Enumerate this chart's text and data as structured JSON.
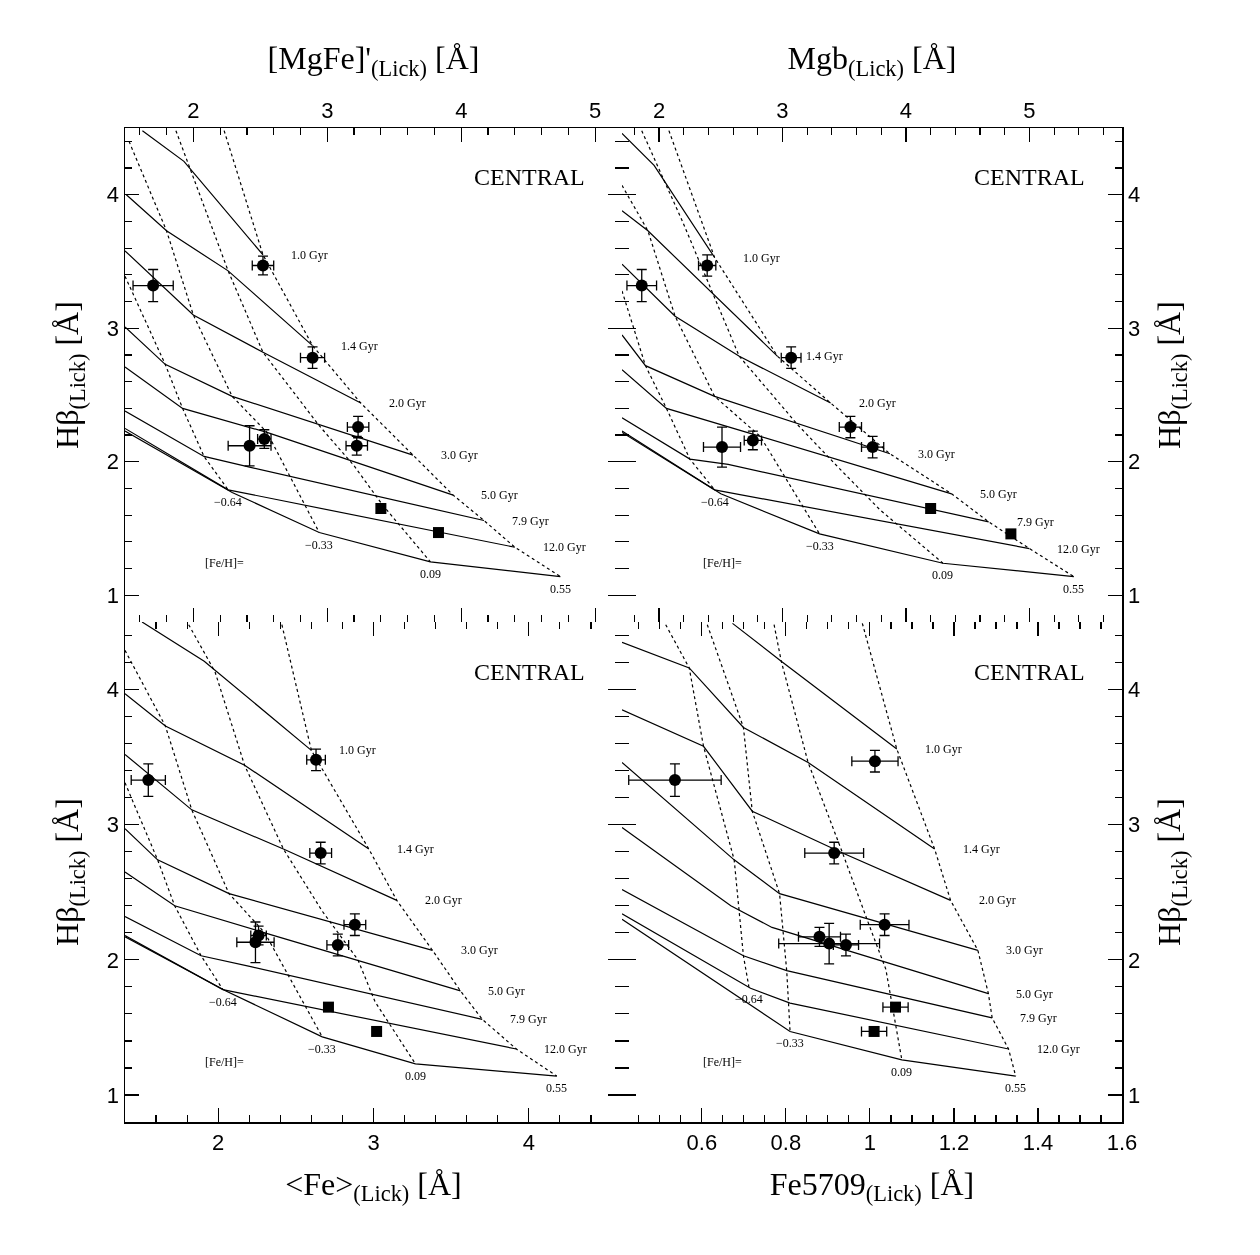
{
  "chart_data": [
    {
      "type": "scatter",
      "xlabel": "[MgFe]'$_{(Lick)}$ [Å]",
      "ylabel": "Hβ$_{(Lick)}$ [Å]",
      "xlim": [
        1.49,
        5.2
      ],
      "xticks": [
        2,
        3,
        4,
        5
      ],
      "ylim": [
        0.8,
        4.5
      ],
      "yticks": [
        1,
        2,
        3,
        4
      ],
      "annotations": [
        "CENTRAL",
        "[Fe/H]=",
        {
          "text": "1.0 Gyr",
          "x": 2.52,
          "y": 3.55
        },
        {
          "text": "1.4 Gyr",
          "x": 2.89,
          "y": 2.87
        },
        {
          "text": "2.0 Gyr",
          "x": 3.25,
          "y": 2.44
        },
        {
          "text": "3.0 Gyr",
          "x": 3.64,
          "y": 2.05
        },
        {
          "text": "5.0 Gyr",
          "x": 3.94,
          "y": 1.75
        },
        {
          "text": "7.9 Gyr",
          "x": 4.17,
          "y": 1.56
        },
        {
          "text": "12.0 Gyr",
          "x": 4.4,
          "y": 1.36
        },
        {
          "text": "−0.64",
          "x": 2.26,
          "y": 1.79
        },
        {
          "text": "−0.33",
          "x": 2.94,
          "y": 1.47
        },
        {
          "text": "0.09",
          "x": 3.77,
          "y": 1.25
        },
        {
          "text": "0.55",
          "x": 4.74,
          "y": 1.14
        }
      ],
      "series": [
        {
          "type": "line",
          "color": "#000000",
          "line_style": "solid",
          "marker": "none",
          "x": [
            1.62,
            1.93,
            2.52
          ],
          "values": [
            4.48,
            4.25,
            3.55
          ]
        },
        {
          "type": "line",
          "color": "#000000",
          "line_style": "solid",
          "marker": "none",
          "x": [
            1.5,
            1.8,
            2.26,
            2.89
          ],
          "values": [
            4.0,
            3.73,
            3.43,
            2.87
          ]
        },
        {
          "type": "line",
          "color": "#000000",
          "line_style": "solid",
          "marker": "none",
          "x": [
            1.49,
            2.0,
            2.52,
            3.25
          ],
          "values": [
            3.58,
            3.1,
            2.82,
            2.44
          ]
        },
        {
          "type": "line",
          "color": "#000000",
          "line_style": "solid",
          "marker": "none",
          "x": [
            1.49,
            1.79,
            2.29,
            3.64
          ],
          "values": [
            3.01,
            2.73,
            2.49,
            2.05
          ]
        },
        {
          "type": "line",
          "color": "#000000",
          "line_style": "solid",
          "marker": "none",
          "x": [
            1.49,
            1.92,
            2.55,
            3.94
          ],
          "values": [
            2.71,
            2.4,
            2.22,
            1.75
          ]
        },
        {
          "type": "line",
          "color": "#000000",
          "line_style": "solid",
          "marker": "none",
          "x": [
            1.49,
            2.08,
            2.42,
            4.17
          ],
          "values": [
            2.38,
            2.04,
            1.96,
            1.56
          ]
        },
        {
          "type": "line",
          "color": "#000000",
          "line_style": "solid",
          "marker": "none",
          "x": [
            1.49,
            2.26,
            4.4
          ],
          "values": [
            2.25,
            1.79,
            1.36
          ]
        },
        {
          "type": "line",
          "color": "#000000",
          "line_style": "solid",
          "marker": "none",
          "x": [
            1.49,
            2.29,
            2.94,
            3.77,
            4.74
          ],
          "values": [
            2.23,
            1.77,
            1.47,
            1.25,
            1.14
          ]
        },
        {
          "type": "line",
          "color": "#000000",
          "line_style": "dotted",
          "marker": "none",
          "x": [
            2.23,
            2.52,
            2.89,
            3.25,
            3.64,
            3.94,
            4.17,
            4.4,
            4.74
          ],
          "values": [
            4.48,
            3.55,
            2.87,
            2.44,
            2.05,
            1.75,
            1.56,
            1.36,
            1.14
          ]
        },
        {
          "type": "line",
          "color": "#000000",
          "line_style": "dotted",
          "marker": "none",
          "x": [
            1.87,
            2.26,
            2.52,
            2.94,
            3.2,
            3.41,
            3.77
          ],
          "values": [
            4.48,
            3.43,
            2.82,
            2.27,
            1.97,
            1.68,
            1.25
          ]
        },
        {
          "type": "line",
          "color": "#000000",
          "line_style": "dotted",
          "marker": "none",
          "x": [
            1.52,
            1.8,
            2.0,
            2.29,
            2.55,
            2.94
          ],
          "values": [
            4.4,
            3.73,
            3.1,
            2.49,
            2.22,
            1.47
          ]
        },
        {
          "type": "line",
          "color": "#000000",
          "line_style": "dotted",
          "marker": "none",
          "x": [
            1.49,
            1.79,
            1.92,
            2.08,
            2.26
          ],
          "values": [
            3.39,
            2.73,
            2.4,
            2.04,
            1.79
          ]
        },
        {
          "color": "#000000",
          "marker": "circle",
          "x": [
            1.7,
            2.52,
            2.89,
            3.23,
            3.22,
            2.42,
            2.53
          ],
          "values": [
            3.32,
            3.47,
            2.78,
            2.26,
            2.12,
            2.12,
            2.17
          ],
          "xerrors": [
            0.15,
            0.08,
            0.09,
            0.08,
            0.08,
            0.16,
            0.05
          ],
          "errors": [
            0.12,
            0.07,
            0.08,
            0.08,
            0.07,
            0.15,
            0.07
          ]
        },
        {
          "color": "#000000",
          "marker": "square",
          "x": [
            3.4,
            3.83
          ],
          "values": [
            1.65,
            1.47
          ]
        }
      ]
    },
    {
      "type": "scatter",
      "xlabel": "Mgb$_{(Lick)}$ [Å]",
      "ylabel": "Hβ$_{(Lick)}$ [Å]",
      "xlim": [
        1.7,
        5.75
      ],
      "xticks": [
        2,
        3,
        4,
        5
      ],
      "ylim": [
        0.8,
        4.5
      ],
      "yticks": [
        1,
        2,
        3,
        4
      ],
      "annotations": [
        "CENTRAL",
        "[Fe/H]=",
        {
          "text": "1.0 Gyr",
          "x": 2.45,
          "y": 3.53
        },
        {
          "text": "1.4 Gyr",
          "x": 2.96,
          "y": 2.79
        },
        {
          "text": "2.0 Gyr",
          "x": 3.39,
          "y": 2.44
        },
        {
          "text": "3.0 Gyr",
          "x": 3.87,
          "y": 2.06
        },
        {
          "text": "5.0 Gyr",
          "x": 4.37,
          "y": 1.76
        },
        {
          "text": "7.9 Gyr",
          "x": 4.67,
          "y": 1.55
        },
        {
          "text": "12.0 Gyr",
          "x": 5.0,
          "y": 1.35
        },
        {
          "text": "−0.64",
          "x": 2.45,
          "y": 1.79
        },
        {
          "text": "−0.33",
          "x": 3.3,
          "y": 1.46
        },
        {
          "text": "0.09",
          "x": 4.3,
          "y": 1.24
        },
        {
          "text": "0.55",
          "x": 5.36,
          "y": 1.14
        }
      ],
      "series": [
        {
          "type": "line",
          "color": "#000000",
          "line_style": "solid",
          "marker": "none",
          "x": [
            1.7,
            1.96,
            2.45
          ],
          "values": [
            4.46,
            4.22,
            3.53
          ]
        },
        {
          "type": "line",
          "color": "#000000",
          "line_style": "solid",
          "marker": "none",
          "x": [
            1.7,
            1.91,
            2.96
          ],
          "values": [
            3.88,
            3.73,
            2.79
          ]
        },
        {
          "type": "line",
          "color": "#000000",
          "line_style": "solid",
          "marker": "none",
          "x": [
            1.7,
            2.13,
            2.65,
            3.39
          ],
          "values": [
            3.48,
            3.09,
            2.79,
            2.44
          ]
        },
        {
          "type": "line",
          "color": "#000000",
          "line_style": "solid",
          "marker": "none",
          "x": [
            1.7,
            1.89,
            2.45,
            3.87
          ],
          "values": [
            2.95,
            2.72,
            2.49,
            2.06
          ]
        },
        {
          "type": "line",
          "color": "#000000",
          "line_style": "solid",
          "marker": "none",
          "x": [
            1.7,
            2.06,
            2.82,
            4.37
          ],
          "values": [
            2.69,
            2.4,
            2.19,
            1.76
          ]
        },
        {
          "type": "line",
          "color": "#000000",
          "line_style": "solid",
          "marker": "none",
          "x": [
            1.7,
            2.25,
            2.56,
            4.67
          ],
          "values": [
            2.33,
            2.02,
            1.98,
            1.55
          ]
        },
        {
          "type": "line",
          "color": "#000000",
          "line_style": "solid",
          "marker": "none",
          "x": [
            1.7,
            2.45,
            5.0
          ],
          "values": [
            2.22,
            1.79,
            1.35
          ]
        },
        {
          "type": "line",
          "color": "#000000",
          "line_style": "solid",
          "marker": "none",
          "x": [
            1.7,
            2.5,
            3.3,
            4.3,
            5.36
          ],
          "values": [
            2.23,
            1.76,
            1.46,
            1.24,
            1.14
          ]
        },
        {
          "type": "line",
          "color": "#000000",
          "line_style": "dotted",
          "marker": "none",
          "x": [
            2.08,
            2.45,
            2.96,
            3.39,
            3.87,
            4.37,
            4.67,
            5.0,
            5.36
          ],
          "values": [
            4.48,
            3.53,
            2.79,
            2.44,
            2.06,
            1.76,
            1.55,
            1.35,
            1.14
          ]
        },
        {
          "type": "line",
          "color": "#000000",
          "line_style": "dotted",
          "marker": "none",
          "x": [
            1.86,
            2.19,
            2.65,
            3.13,
            3.45,
            3.79,
            4.3
          ],
          "values": [
            4.48,
            3.8,
            2.79,
            2.27,
            1.96,
            1.64,
            1.24
          ]
        },
        {
          "type": "line",
          "color": "#000000",
          "line_style": "dotted",
          "marker": "none",
          "x": [
            1.7,
            1.91,
            2.13,
            2.45,
            2.82,
            3.3
          ],
          "values": [
            4.07,
            3.73,
            3.09,
            2.49,
            2.19,
            1.46
          ]
        },
        {
          "type": "line",
          "color": "#000000",
          "line_style": "dotted",
          "marker": "none",
          "x": [
            1.7,
            1.89,
            2.06,
            2.25,
            2.45
          ],
          "values": [
            3.28,
            2.72,
            2.4,
            2.02,
            1.79
          ]
        },
        {
          "color": "#000000",
          "marker": "circle",
          "x": [
            1.86,
            2.39,
            3.07,
            3.55,
            3.73,
            2.51,
            2.76
          ],
          "values": [
            3.32,
            3.47,
            2.78,
            2.26,
            2.11,
            2.11,
            2.16
          ],
          "xerrors": [
            0.12,
            0.07,
            0.08,
            0.09,
            0.09,
            0.15,
            0.07
          ],
          "errors": [
            0.12,
            0.08,
            0.08,
            0.08,
            0.08,
            0.15,
            0.07
          ]
        },
        {
          "color": "#000000",
          "marker": "square",
          "x": [
            4.2,
            4.85
          ],
          "values": [
            1.65,
            1.46
          ]
        }
      ]
    },
    {
      "type": "scatter",
      "xlabel": "<Fe>$_{(Lick)}$ [Å]",
      "ylabel": "Hβ$_{(Lick)}$ [Å]",
      "xlim": [
        1.4,
        4.6
      ],
      "xticks": [
        2,
        3,
        4
      ],
      "ylim": [
        0.8,
        4.5
      ],
      "yticks": [
        1,
        2,
        3,
        4
      ],
      "annotations": [
        "CENTRAL",
        "[Fe/H]=",
        {
          "text": "1.0 Gyr",
          "x": 2.6,
          "y": 3.55
        },
        {
          "text": "1.4 Gyr",
          "x": 2.97,
          "y": 2.82
        },
        {
          "text": "2.0 Gyr",
          "x": 3.15,
          "y": 2.44
        },
        {
          "text": "3.0 Gyr",
          "x": 3.38,
          "y": 2.07
        },
        {
          "text": "5.0 Gyr",
          "x": 3.56,
          "y": 1.77
        },
        {
          "text": "7.9 Gyr",
          "x": 3.7,
          "y": 1.56
        },
        {
          "text": "12.0 Gyr",
          "x": 3.92,
          "y": 1.34
        },
        {
          "text": "−0.64",
          "x": 2.03,
          "y": 1.78
        },
        {
          "text": "−0.33",
          "x": 2.67,
          "y": 1.43
        },
        {
          "text": "0.09",
          "x": 3.27,
          "y": 1.23
        },
        {
          "text": "0.55",
          "x": 4.18,
          "y": 1.14
        }
      ],
      "series": [
        {
          "type": "line",
          "color": "#000000",
          "line_style": "solid",
          "marker": "none",
          "x": [
            1.51,
            1.91,
            2.6
          ],
          "values": [
            4.5,
            4.21,
            3.55
          ]
        },
        {
          "type": "line",
          "color": "#000000",
          "line_style": "solid",
          "marker": "none",
          "x": [
            1.4,
            1.66,
            2.17,
            2.97
          ],
          "values": [
            3.97,
            3.73,
            3.44,
            2.82
          ]
        },
        {
          "type": "line",
          "color": "#000000",
          "line_style": "solid",
          "marker": "none",
          "x": [
            1.4,
            1.83,
            2.42,
            3.15
          ],
          "values": [
            3.52,
            3.11,
            2.82,
            2.44
          ]
        },
        {
          "type": "line",
          "color": "#000000",
          "line_style": "solid",
          "marker": "none",
          "x": [
            1.4,
            1.61,
            2.07,
            3.38
          ],
          "values": [
            2.97,
            2.74,
            2.49,
            2.07
          ]
        },
        {
          "type": "line",
          "color": "#000000",
          "line_style": "solid",
          "marker": "none",
          "x": [
            1.4,
            1.72,
            2.3,
            3.56
          ],
          "values": [
            2.65,
            2.4,
            2.2,
            1.77
          ]
        },
        {
          "type": "line",
          "color": "#000000",
          "line_style": "solid",
          "marker": "none",
          "x": [
            1.4,
            1.89,
            2.21,
            3.7
          ],
          "values": [
            2.32,
            2.03,
            1.95,
            1.56
          ]
        },
        {
          "type": "line",
          "color": "#000000",
          "line_style": "solid",
          "marker": "none",
          "x": [
            1.4,
            2.03,
            3.92
          ],
          "values": [
            2.18,
            1.78,
            1.34
          ]
        },
        {
          "type": "line",
          "color": "#000000",
          "line_style": "solid",
          "marker": "none",
          "x": [
            1.4,
            2.05,
            2.67,
            3.27,
            4.18
          ],
          "values": [
            2.17,
            1.77,
            1.43,
            1.23,
            1.14
          ]
        },
        {
          "type": "line",
          "color": "#000000",
          "line_style": "dotted",
          "marker": "none",
          "x": [
            2.41,
            2.6,
            2.97,
            3.15,
            3.38,
            3.56,
            3.7,
            3.92,
            4.18
          ],
          "values": [
            4.48,
            3.55,
            2.82,
            2.44,
            2.07,
            1.77,
            1.56,
            1.34,
            1.14
          ]
        },
        {
          "type": "line",
          "color": "#000000",
          "line_style": "dotted",
          "marker": "none",
          "x": [
            1.81,
            1.98,
            2.17,
            2.42,
            2.67,
            2.9,
            3.01,
            3.27
          ],
          "values": [
            4.48,
            4.13,
            3.44,
            2.82,
            2.36,
            2.0,
            1.69,
            1.23
          ]
        },
        {
          "type": "line",
          "color": "#000000",
          "line_style": "dotted",
          "marker": "none",
          "x": [
            1.4,
            1.66,
            1.83,
            2.07,
            2.3,
            2.67
          ],
          "values": [
            4.29,
            3.73,
            3.11,
            2.49,
            2.2,
            1.43
          ]
        },
        {
          "type": "line",
          "color": "#000000",
          "line_style": "dotted",
          "marker": "none",
          "x": [
            1.4,
            1.61,
            1.72,
            1.89,
            2.03
          ],
          "values": [
            3.31,
            2.74,
            2.4,
            2.03,
            1.78
          ]
        },
        {
          "color": "#000000",
          "marker": "circle",
          "x": [
            1.55,
            2.63,
            2.66,
            2.88,
            2.77,
            2.24,
            2.26
          ],
          "values": [
            3.33,
            3.48,
            2.79,
            2.26,
            2.11,
            2.13,
            2.18
          ],
          "xerrors": [
            0.11,
            0.06,
            0.07,
            0.07,
            0.07,
            0.12,
            0.05
          ],
          "errors": [
            0.12,
            0.08,
            0.08,
            0.08,
            0.08,
            0.15,
            0.07
          ]
        },
        {
          "color": "#000000",
          "marker": "square",
          "x": [
            2.71,
            3.02
          ],
          "values": [
            1.65,
            1.47
          ]
        }
      ]
    },
    {
      "type": "scatter",
      "xlabel": "Fe5709$_{(Lick)}$ [Å]",
      "ylabel": "Hβ$_{(Lick)}$ [Å]",
      "xlim": [
        0.41,
        1.6
      ],
      "xticks": [
        0.6,
        0.8,
        1,
        1.2,
        1.4,
        1.6
      ],
      "ylim": [
        0.8,
        4.5
      ],
      "yticks": [
        1,
        2,
        3,
        4
      ],
      "annotations": [
        "CENTRAL",
        "[Fe/H]=",
        {
          "text": "1.0 Gyr",
          "x": 1.064,
          "y": 3.56
        },
        {
          "text": "1.4 Gyr",
          "x": 1.154,
          "y": 2.82
        },
        {
          "text": "2.0 Gyr",
          "x": 1.192,
          "y": 2.44
        },
        {
          "text": "3.0 Gyr",
          "x": 1.257,
          "y": 2.07
        },
        {
          "text": "5.0 Gyr",
          "x": 1.282,
          "y": 1.75
        },
        {
          "text": "7.9 Gyr",
          "x": 1.291,
          "y": 1.57
        },
        {
          "text": "12.0 Gyr",
          "x": 1.33,
          "y": 1.34
        },
        {
          "text": "−0.64",
          "x": 0.712,
          "y": 1.8
        },
        {
          "text": "−0.33",
          "x": 0.81,
          "y": 1.47
        },
        {
          "text": "0.09",
          "x": 1.076,
          "y": 1.26
        },
        {
          "text": "0.55",
          "x": 1.347,
          "y": 1.14
        }
      ],
      "series": [
        {
          "type": "line",
          "color": "#000000",
          "line_style": "solid",
          "marker": "none",
          "x": [
            0.673,
            0.789,
            1.064
          ],
          "values": [
            4.49,
            4.21,
            3.56
          ]
        },
        {
          "type": "line",
          "color": "#000000",
          "line_style": "solid",
          "marker": "none",
          "x": [
            0.41,
            0.57,
            0.699,
            0.853,
            1.154
          ],
          "values": [
            4.35,
            4.16,
            3.72,
            3.46,
            2.82
          ]
        },
        {
          "type": "line",
          "color": "#000000",
          "line_style": "solid",
          "marker": "none",
          "x": [
            0.41,
            0.604,
            0.72,
            0.935,
            1.192
          ],
          "values": [
            3.85,
            3.58,
            3.1,
            2.79,
            2.44
          ]
        },
        {
          "type": "line",
          "color": "#000000",
          "line_style": "solid",
          "marker": "none",
          "x": [
            0.41,
            0.677,
            0.785,
            1.257
          ],
          "values": [
            3.46,
            2.74,
            2.49,
            2.07
          ]
        },
        {
          "type": "line",
          "color": "#000000",
          "line_style": "solid",
          "marker": "none",
          "x": [
            0.41,
            0.669,
            0.767,
            1.282
          ],
          "values": [
            2.98,
            2.4,
            2.24,
            1.75
          ]
        },
        {
          "type": "line",
          "color": "#000000",
          "line_style": "solid",
          "marker": "none",
          "x": [
            0.41,
            0.699,
            0.802,
            1.291
          ],
          "values": [
            2.52,
            2.03,
            1.92,
            1.57
          ]
        },
        {
          "type": "line",
          "color": "#000000",
          "line_style": "solid",
          "marker": "none",
          "x": [
            0.41,
            0.716,
            0.81,
            1.33
          ],
          "values": [
            2.34,
            1.79,
            1.68,
            1.34
          ]
        },
        {
          "type": "line",
          "color": "#000000",
          "line_style": "solid",
          "marker": "none",
          "x": [
            0.41,
            0.81,
            1.076,
            1.347
          ],
          "values": [
            2.3,
            1.47,
            1.26,
            1.14
          ]
        },
        {
          "type": "line",
          "color": "#000000",
          "line_style": "dotted",
          "marker": "none",
          "x": [
            0.982,
            1.064,
            1.154,
            1.192,
            1.257,
            1.282,
            1.291,
            1.33,
            1.347
          ],
          "values": [
            4.49,
            3.56,
            2.82,
            2.44,
            2.07,
            1.75,
            1.57,
            1.34,
            1.14
          ]
        },
        {
          "type": "line",
          "color": "#000000",
          "line_style": "dotted",
          "marker": "none",
          "x": [
            0.772,
            0.789,
            0.853,
            0.935,
            0.999,
            1.038,
            1.076
          ],
          "values": [
            4.48,
            4.21,
            3.46,
            2.79,
            2.25,
            1.93,
            1.26
          ]
        },
        {
          "type": "line",
          "color": "#000000",
          "line_style": "dotted",
          "marker": "none",
          "x": [
            0.613,
            0.699,
            0.72,
            0.785,
            0.802,
            0.81
          ],
          "values": [
            4.48,
            3.72,
            3.1,
            2.49,
            1.92,
            1.47
          ]
        },
        {
          "type": "line",
          "color": "#000000",
          "line_style": "dotted",
          "marker": "none",
          "x": [
            0.514,
            0.57,
            0.604,
            0.677,
            0.699,
            0.712
          ],
          "values": [
            4.48,
            4.16,
            3.58,
            2.74,
            2.03,
            1.8
          ]
        },
        {
          "color": "#000000",
          "marker": "circle",
          "x": [
            0.536,
            1.012,
            0.915,
            1.035,
            0.88,
            0.903,
            0.943
          ],
          "values": [
            3.33,
            3.47,
            2.79,
            2.26,
            2.17,
            2.12,
            2.11
          ],
          "xerrors": [
            0.11,
            0.055,
            0.07,
            0.058,
            0.05,
            0.12,
            0.03
          ],
          "errors": [
            0.12,
            0.08,
            0.08,
            0.08,
            0.07,
            0.15,
            0.08
          ]
        },
        {
          "color": "#000000",
          "marker": "square",
          "x": [
            1.061,
            1.01
          ],
          "values": [
            1.65,
            1.47
          ],
          "xerrors": [
            0.03,
            0.03
          ]
        }
      ]
    }
  ]
}
